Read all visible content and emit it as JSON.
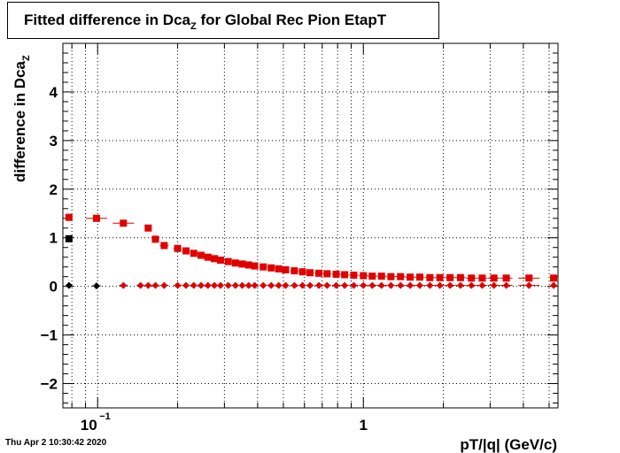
{
  "title": {
    "main": "Fitted difference in Dca",
    "sub": "Z",
    "rest": " for Global Rec Pion EtapT"
  },
  "timestamp": "Thu Apr  2 10:30:42 2020",
  "chart_data": {
    "type": "scatter",
    "title": "Fitted difference in Dca_Z for Global Rec Pion EtapT",
    "xlabel": "pT/|q| (GeV/c)",
    "ylabel": "difference in Dca_Z",
    "xscale": "log",
    "xlim": [
      0.074,
      5.4
    ],
    "ylim": [
      -2.5,
      5.0
    ],
    "grid": true,
    "x_tick_labels": [
      "10^-1",
      "1"
    ],
    "y_tick_labels": [
      "-2",
      "-1",
      "0",
      "1",
      "2",
      "3",
      "4"
    ],
    "series": [
      {
        "color": "#000000",
        "marker": "square",
        "x": [
          0.078
        ],
        "y": [
          0.98
        ]
      },
      {
        "color": "#000000",
        "marker": "diamond",
        "x": [
          0.078,
          0.099
        ],
        "y": [
          0.02,
          0.01
        ]
      },
      {
        "color": "#e00000",
        "marker": "square",
        "x": [
          0.078,
          0.099,
          0.125,
          0.155,
          0.165,
          0.178,
          0.2,
          0.215,
          0.23,
          0.245,
          0.26,
          0.275,
          0.29,
          0.31,
          0.33,
          0.35,
          0.37,
          0.39,
          0.42,
          0.45,
          0.48,
          0.51,
          0.55,
          0.59,
          0.63,
          0.68,
          0.73,
          0.79,
          0.85,
          0.92,
          1.0,
          1.08,
          1.17,
          1.27,
          1.38,
          1.5,
          1.63,
          1.78,
          1.94,
          2.12,
          2.32,
          2.55,
          2.8,
          3.1,
          3.45,
          4.2,
          5.2
        ],
        "y": [
          1.42,
          1.4,
          1.3,
          1.2,
          0.97,
          0.84,
          0.78,
          0.73,
          0.68,
          0.64,
          0.6,
          0.57,
          0.54,
          0.51,
          0.48,
          0.46,
          0.44,
          0.42,
          0.4,
          0.38,
          0.36,
          0.34,
          0.32,
          0.3,
          0.28,
          0.27,
          0.26,
          0.25,
          0.24,
          0.23,
          0.22,
          0.21,
          0.21,
          0.2,
          0.2,
          0.19,
          0.19,
          0.18,
          0.18,
          0.18,
          0.18,
          0.17,
          0.17,
          0.17,
          0.17,
          0.17,
          0.17
        ]
      },
      {
        "color": "#e00000",
        "marker": "diamond",
        "x": [
          0.125,
          0.145,
          0.155,
          0.165,
          0.178,
          0.2,
          0.215,
          0.23,
          0.245,
          0.26,
          0.275,
          0.29,
          0.31,
          0.33,
          0.35,
          0.37,
          0.39,
          0.42,
          0.45,
          0.48,
          0.51,
          0.55,
          0.59,
          0.63,
          0.68,
          0.73,
          0.79,
          0.85,
          0.92,
          1.0,
          1.08,
          1.17,
          1.27,
          1.38,
          1.5,
          1.63,
          1.78,
          1.94,
          2.12,
          2.32,
          2.55,
          2.8,
          3.1,
          3.45,
          4.2,
          5.2
        ],
        "y": [
          0.02,
          0.02,
          0.02,
          0.02,
          0.02,
          0.02,
          0.02,
          0.02,
          0.02,
          0.02,
          0.02,
          0.02,
          0.02,
          0.02,
          0.02,
          0.02,
          0.02,
          0.02,
          0.02,
          0.02,
          0.02,
          0.02,
          0.02,
          0.02,
          0.02,
          0.02,
          0.02,
          0.02,
          0.02,
          0.02,
          0.02,
          0.02,
          0.02,
          0.02,
          0.02,
          0.02,
          0.02,
          0.02,
          0.02,
          0.02,
          0.02,
          0.02,
          0.02,
          0.02,
          0.02,
          0.02
        ]
      }
    ]
  }
}
